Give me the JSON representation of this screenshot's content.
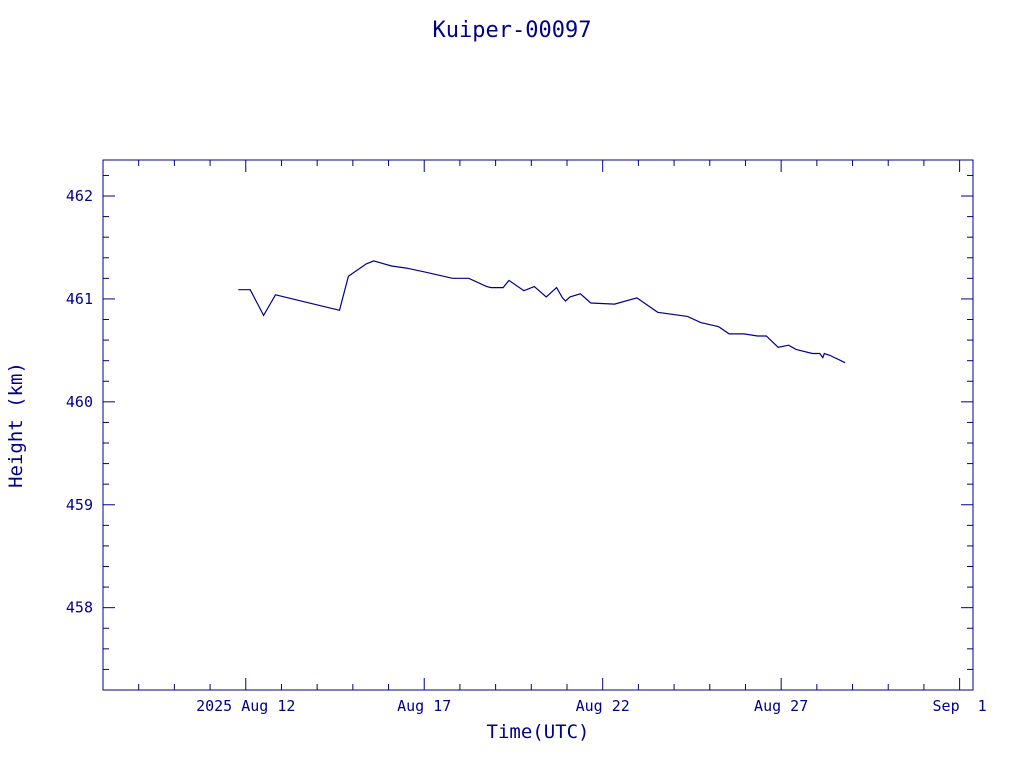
{
  "chart_data": {
    "type": "line",
    "title": "Kuiper-00097",
    "xlabel": "Time(UTC)",
    "ylabel": "Height (km)",
    "ylim": [
      457.2,
      462.35
    ],
    "xlim": [
      "2025-08-08",
      "2025-09-01T09:00"
    ],
    "x_tick_labels": [
      "2025 Aug 12",
      "Aug 17",
      "Aug 22",
      "Aug 27",
      "Sep  1"
    ],
    "y_tick_labels": [
      "458",
      "459",
      "460",
      "461",
      "462"
    ],
    "grid": false,
    "legend": "none",
    "colors": {
      "foreground": "#00008b",
      "background": "#ffffff"
    },
    "series": [
      {
        "x": [
          "2025-08-11T19:00",
          "2025-08-12T03:00",
          "2025-08-12T12:00",
          "2025-08-12T20:00",
          "2025-08-14T15:00",
          "2025-08-14T21:00",
          "2025-08-15T09:00",
          "2025-08-15T14:00",
          "2025-08-16T02:00",
          "2025-08-16T12:00",
          "2025-08-17T01:00",
          "2025-08-17T19:00",
          "2025-08-18T06:00",
          "2025-08-18T18:00",
          "2025-08-18T21:00",
          "2025-08-19T05:00",
          "2025-08-19T09:00",
          "2025-08-19T19:00",
          "2025-08-20T02:00",
          "2025-08-20T10:00",
          "2025-08-20T17:00",
          "2025-08-20T21:00",
          "2025-08-20T23:00",
          "2025-08-21T02:00",
          "2025-08-21T09:00",
          "2025-08-21T16:00",
          "2025-08-22T08:00",
          "2025-08-22T23:00",
          "2025-08-23T13:00",
          "2025-08-24T09:00",
          "2025-08-24T18:00",
          "2025-08-25T06:00",
          "2025-08-25T13:00",
          "2025-08-25T23:00",
          "2025-08-26T08:00",
          "2025-08-26T14:00",
          "2025-08-26T22:00",
          "2025-08-27T05:00",
          "2025-08-27T10:00",
          "2025-08-27T21:00",
          "2025-08-28T02:00",
          "2025-08-28T04:00",
          "2025-08-28T05:00",
          "2025-08-28T09:00",
          "2025-08-28T19:00"
        ],
        "y": [
          461.09,
          461.09,
          460.84,
          461.04,
          460.89,
          461.22,
          461.34,
          461.37,
          461.32,
          461.3,
          461.26,
          461.2,
          461.2,
          461.12,
          461.11,
          461.11,
          461.18,
          461.08,
          461.12,
          461.02,
          461.11,
          461.01,
          460.98,
          461.02,
          461.05,
          460.96,
          460.95,
          461.01,
          460.87,
          460.83,
          460.77,
          460.73,
          460.66,
          460.66,
          460.64,
          460.64,
          460.53,
          460.55,
          460.51,
          460.47,
          460.47,
          460.43,
          460.47,
          460.45,
          460.38
        ]
      }
    ]
  }
}
